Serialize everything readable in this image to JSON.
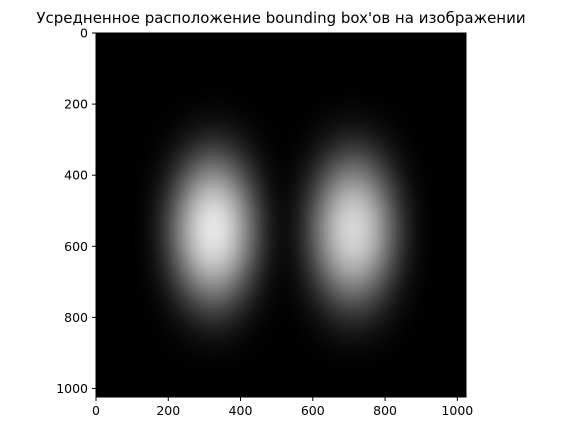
{
  "chart_data": {
    "type": "heatmap",
    "title": "Усредненное расположение bounding box'ов на изображении",
    "xlabel": "",
    "ylabel": "",
    "colormap": "gray",
    "xlim": [
      0,
      1024
    ],
    "ylim": [
      1024,
      0
    ],
    "y_axis_inverted": true,
    "grid": false,
    "legend": "none",
    "xticks": [
      0,
      200,
      400,
      600,
      800,
      1000
    ],
    "yticks": [
      0,
      200,
      400,
      600,
      800,
      1000
    ],
    "blobs": [
      {
        "name": "",
        "cx": 325,
        "cy": 555,
        "sx": 120,
        "sy": 210,
        "peak": 1.0
      },
      {
        "name": "",
        "cx": 712,
        "cy": 555,
        "sx": 120,
        "sy": 210,
        "peak": 0.93
      }
    ],
    "background_level": 0.0
  }
}
